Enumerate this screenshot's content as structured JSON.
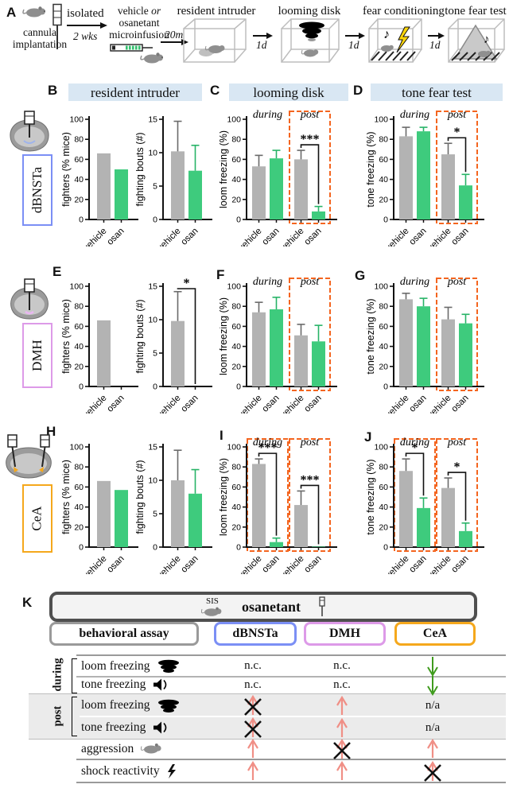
{
  "panels": {
    "a": "A",
    "b": "B",
    "c": "C",
    "d": "D",
    "e": "E",
    "f": "F",
    "g": "G",
    "h": "H",
    "i": "I",
    "j": "J",
    "k": "K"
  },
  "headers": [
    "resident intruder",
    "looming disk",
    "tone fear test"
  ],
  "regions": [
    {
      "name": "dBNSTa",
      "color": "#7b8ff5"
    },
    {
      "name": "DMH",
      "color": "#dd9ae8"
    },
    {
      "name": "CeA",
      "color": "#f5a81c"
    }
  ],
  "accent": {
    "dashed_box": "#f4651f",
    "header_bg": "#d9e7f3"
  },
  "bar_colors": {
    "vehicle": "#b3b3b3",
    "osan": "#3ecb7d",
    "vehicle_err": "#6a6a6a",
    "osan_err": "#27b367"
  },
  "panel_a": {
    "implant_caption": "cannula implantation",
    "isolated": "isolated",
    "weeks": "2 wks",
    "vehicle_line": "vehicle",
    "or_label": "or",
    "osanetant": "osanetant",
    "microinfusion": "microinfusion",
    "t20m": "20m",
    "t1d": "1d",
    "stages": [
      "resident intruder",
      "looming disk",
      "fear conditioning",
      "tone fear test"
    ]
  },
  "chart_data": [
    {
      "id": "B_fighters",
      "panel": "B",
      "type": "bar",
      "ylabel": "fighters (% mice)",
      "ylim": [
        0,
        100
      ],
      "yticks": [
        0,
        20,
        40,
        60,
        80,
        100
      ],
      "categories": [
        "vehicle",
        "osan"
      ],
      "groups": [
        {
          "name": "",
          "dashed": false,
          "sig": null,
          "bars": [
            {
              "label": "vehicle",
              "value": 66,
              "err": 0
            },
            {
              "label": "osan",
              "value": 50,
              "err": 0
            }
          ]
        }
      ]
    },
    {
      "id": "B_bouts",
      "panel": "B",
      "type": "bar",
      "ylabel": "fighting bouts (#)",
      "ylim": [
        0,
        15
      ],
      "yticks": [
        0,
        5,
        10,
        15
      ],
      "categories": [
        "vehicle",
        "osan"
      ],
      "groups": [
        {
          "name": "",
          "dashed": false,
          "sig": null,
          "bars": [
            {
              "label": "vehicle",
              "value": 10.2,
              "err": 4.5
            },
            {
              "label": "osan",
              "value": 7.3,
              "err": 3.8
            }
          ]
        }
      ]
    },
    {
      "id": "C_loom",
      "panel": "C",
      "type": "bar",
      "ylabel": "loom freezing (%)",
      "ylim": [
        0,
        100
      ],
      "yticks": [
        0,
        20,
        40,
        60,
        80,
        100
      ],
      "categories": [
        "vehicle",
        "osan"
      ],
      "groups": [
        {
          "name": "during",
          "dashed": false,
          "sig": null,
          "bars": [
            {
              "label": "vehicle",
              "value": 53,
              "err": 11
            },
            {
              "label": "osan",
              "value": 61,
              "err": 8
            }
          ]
        },
        {
          "name": "post",
          "dashed": true,
          "sig": "***",
          "bars": [
            {
              "label": "vehicle",
              "value": 60,
              "err": 9
            },
            {
              "label": "osan",
              "value": 8,
              "err": 5
            }
          ]
        }
      ]
    },
    {
      "id": "D_tone",
      "panel": "D",
      "type": "bar",
      "ylabel": "tone freezing (%)",
      "ylim": [
        0,
        100
      ],
      "yticks": [
        0,
        20,
        40,
        60,
        80,
        100
      ],
      "categories": [
        "vehicle",
        "osan"
      ],
      "groups": [
        {
          "name": "during",
          "dashed": false,
          "sig": null,
          "bars": [
            {
              "label": "vehicle",
              "value": 83,
              "err": 9
            },
            {
              "label": "osan",
              "value": 88,
              "err": 4
            }
          ]
        },
        {
          "name": "post",
          "dashed": true,
          "sig": "*",
          "bars": [
            {
              "label": "vehicle",
              "value": 65,
              "err": 11
            },
            {
              "label": "osan",
              "value": 34,
              "err": 11
            }
          ]
        }
      ]
    },
    {
      "id": "E_fighters",
      "panel": "E",
      "type": "bar",
      "ylabel": "fighters (% mice)",
      "ylim": [
        0,
        100
      ],
      "yticks": [
        0,
        20,
        40,
        60,
        80,
        100
      ],
      "categories": [
        "vehicle",
        "osan"
      ],
      "groups": [
        {
          "name": "",
          "dashed": false,
          "sig": null,
          "bars": [
            {
              "label": "vehicle",
              "value": 66,
              "err": 0
            },
            {
              "label": "osan",
              "value": 0,
              "err": 0
            }
          ]
        }
      ]
    },
    {
      "id": "E_bouts",
      "panel": "E",
      "type": "bar",
      "ylabel": "fighting bouts (#)",
      "ylim": [
        0,
        15
      ],
      "yticks": [
        0,
        5,
        10,
        15
      ],
      "categories": [
        "vehicle",
        "osan"
      ],
      "groups": [
        {
          "name": "",
          "dashed": false,
          "sig": "*",
          "bars": [
            {
              "label": "vehicle",
              "value": 9.8,
              "err": 4.4
            },
            {
              "label": "osan",
              "value": 0,
              "err": 0
            }
          ]
        }
      ]
    },
    {
      "id": "F_loom",
      "panel": "F",
      "type": "bar",
      "ylabel": "loom freezing (%)",
      "ylim": [
        0,
        100
      ],
      "yticks": [
        0,
        20,
        40,
        60,
        80,
        100
      ],
      "categories": [
        "vehicle",
        "osan"
      ],
      "groups": [
        {
          "name": "during",
          "dashed": false,
          "sig": null,
          "bars": [
            {
              "label": "vehicle",
              "value": 74,
              "err": 10
            },
            {
              "label": "osan",
              "value": 77,
              "err": 12
            }
          ]
        },
        {
          "name": "post",
          "dashed": true,
          "sig": null,
          "bars": [
            {
              "label": "vehicle",
              "value": 51,
              "err": 11
            },
            {
              "label": "osan",
              "value": 45,
              "err": 16
            }
          ]
        }
      ]
    },
    {
      "id": "G_tone",
      "panel": "G",
      "type": "bar",
      "ylabel": "tone freezing (%)",
      "ylim": [
        0,
        100
      ],
      "yticks": [
        0,
        20,
        40,
        60,
        80,
        100
      ],
      "categories": [
        "vehicle",
        "osan"
      ],
      "groups": [
        {
          "name": "during",
          "dashed": false,
          "sig": null,
          "bars": [
            {
              "label": "vehicle",
              "value": 87,
              "err": 6
            },
            {
              "label": "osan",
              "value": 80,
              "err": 8
            }
          ]
        },
        {
          "name": "post",
          "dashed": true,
          "sig": null,
          "bars": [
            {
              "label": "vehicle",
              "value": 67,
              "err": 12
            },
            {
              "label": "osan",
              "value": 63,
              "err": 9
            }
          ]
        }
      ]
    },
    {
      "id": "H_fighters",
      "panel": "H",
      "type": "bar",
      "ylabel": "fighters (% mice)",
      "ylim": [
        0,
        100
      ],
      "yticks": [
        0,
        20,
        40,
        60,
        80,
        100
      ],
      "categories": [
        "vehicle",
        "osan"
      ],
      "groups": [
        {
          "name": "",
          "dashed": false,
          "sig": null,
          "bars": [
            {
              "label": "vehicle",
              "value": 66,
              "err": 0
            },
            {
              "label": "osan",
              "value": 57,
              "err": 0
            }
          ]
        }
      ]
    },
    {
      "id": "H_bouts",
      "panel": "H",
      "type": "bar",
      "ylabel": "fighting bouts (#)",
      "ylim": [
        0,
        15
      ],
      "yticks": [
        0,
        5,
        10,
        15
      ],
      "categories": [
        "vehicle",
        "osan"
      ],
      "groups": [
        {
          "name": "",
          "dashed": false,
          "sig": null,
          "bars": [
            {
              "label": "vehicle",
              "value": 10,
              "err": 4.5
            },
            {
              "label": "osan",
              "value": 8,
              "err": 3.6
            }
          ]
        }
      ]
    },
    {
      "id": "I_loom",
      "panel": "I",
      "type": "bar",
      "ylabel": "loom freezing (%)",
      "ylim": [
        0,
        100
      ],
      "yticks": [
        0,
        20,
        40,
        60,
        80,
        100
      ],
      "categories": [
        "vehicle",
        "osan"
      ],
      "groups": [
        {
          "name": "during",
          "dashed": true,
          "sig": "***",
          "bars": [
            {
              "label": "vehicle",
              "value": 83,
              "err": 5
            },
            {
              "label": "osan",
              "value": 5,
              "err": 4
            }
          ]
        },
        {
          "name": "post",
          "dashed": true,
          "sig": "***",
          "bars": [
            {
              "label": "vehicle",
              "value": 42,
              "err": 14
            },
            {
              "label": "osan",
              "value": 0.5,
              "err": 0
            }
          ]
        }
      ]
    },
    {
      "id": "J_tone",
      "panel": "J",
      "type": "bar",
      "ylabel": "tone freezing (%)",
      "ylim": [
        0,
        100
      ],
      "yticks": [
        0,
        20,
        40,
        60,
        80,
        100
      ],
      "categories": [
        "vehicle",
        "osan"
      ],
      "groups": [
        {
          "name": "during",
          "dashed": true,
          "sig": "*",
          "bars": [
            {
              "label": "vehicle",
              "value": 76,
              "err": 12
            },
            {
              "label": "osan",
              "value": 39,
              "err": 10
            }
          ]
        },
        {
          "name": "post",
          "dashed": true,
          "sig": "*",
          "bars": [
            {
              "label": "vehicle",
              "value": 59,
              "err": 10
            },
            {
              "label": "osan",
              "value": 16,
              "err": 8
            }
          ]
        }
      ]
    }
  ],
  "panel_k": {
    "sis": "SIS",
    "drug": "osanetant",
    "assay_header": "behavioral assay",
    "group_labels": {
      "during": "during",
      "post": "post"
    },
    "cell_text": {
      "nc": "n.c.",
      "na": "n/a"
    },
    "arrow_colors": {
      "up_pink": "#f08f86",
      "down_green": "#3f9b1d",
      "x_mark": "#111111"
    },
    "rows": [
      {
        "section": "during",
        "label": "loom freezing",
        "icon": "looming-disk-icon",
        "cells": [
          "nc",
          "nc",
          "down_green"
        ]
      },
      {
        "section": "during",
        "label": "tone freezing",
        "icon": "speaker-icon",
        "cells": [
          "nc",
          "nc",
          "down_green"
        ]
      },
      {
        "section": "post",
        "label": "loom freezing",
        "icon": "looming-disk-icon",
        "cells": [
          "x_up_pink",
          "up_pink",
          "na"
        ]
      },
      {
        "section": "post",
        "label": "tone freezing",
        "icon": "speaker-icon",
        "cells": [
          "x_up_pink",
          "up_pink",
          "na"
        ]
      },
      {
        "section": "",
        "label": "aggression",
        "icon": "mouse-icon",
        "cells": [
          "up_pink",
          "x_up_pink",
          "up_pink"
        ]
      },
      {
        "section": "",
        "label": "shock reactivity",
        "icon": "lightning-icon",
        "cells": [
          "up_pink",
          "up_pink",
          "x_up_pink"
        ]
      }
    ]
  }
}
